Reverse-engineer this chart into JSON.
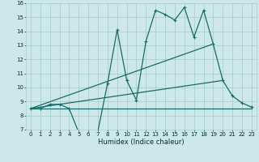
{
  "xlabel": "Humidex (Indice chaleur)",
  "background_color": "#cce8e8",
  "grid_color": "#aacfcf",
  "line_color": "#1a6b6b",
  "xlim": [
    -0.5,
    23.5
  ],
  "ylim": [
    7,
    16
  ],
  "xticks": [
    0,
    1,
    2,
    3,
    4,
    5,
    6,
    7,
    8,
    9,
    10,
    11,
    12,
    13,
    14,
    15,
    16,
    17,
    18,
    19,
    20,
    21,
    22,
    23
  ],
  "yticks": [
    7,
    8,
    9,
    10,
    11,
    12,
    13,
    14,
    15,
    16
  ],
  "line1_x": [
    0,
    1,
    2,
    3,
    4,
    5,
    6,
    7,
    8,
    9,
    10,
    11,
    12,
    13,
    14,
    15,
    16,
    17,
    18,
    19,
    20,
    21,
    22,
    23
  ],
  "line1_y": [
    8.5,
    8.5,
    8.8,
    8.8,
    8.5,
    6.8,
    6.7,
    6.9,
    10.3,
    14.1,
    10.5,
    9.1,
    13.3,
    15.5,
    15.2,
    14.8,
    15.7,
    13.6,
    15.5,
    13.1,
    10.5,
    9.4,
    8.9,
    8.6
  ],
  "line2_x": [
    0,
    23
  ],
  "line2_y": [
    8.5,
    8.5
  ],
  "line3_x": [
    0,
    19
  ],
  "line3_y": [
    8.5,
    13.1
  ],
  "line4_x": [
    0,
    20
  ],
  "line4_y": [
    8.5,
    10.5
  ]
}
